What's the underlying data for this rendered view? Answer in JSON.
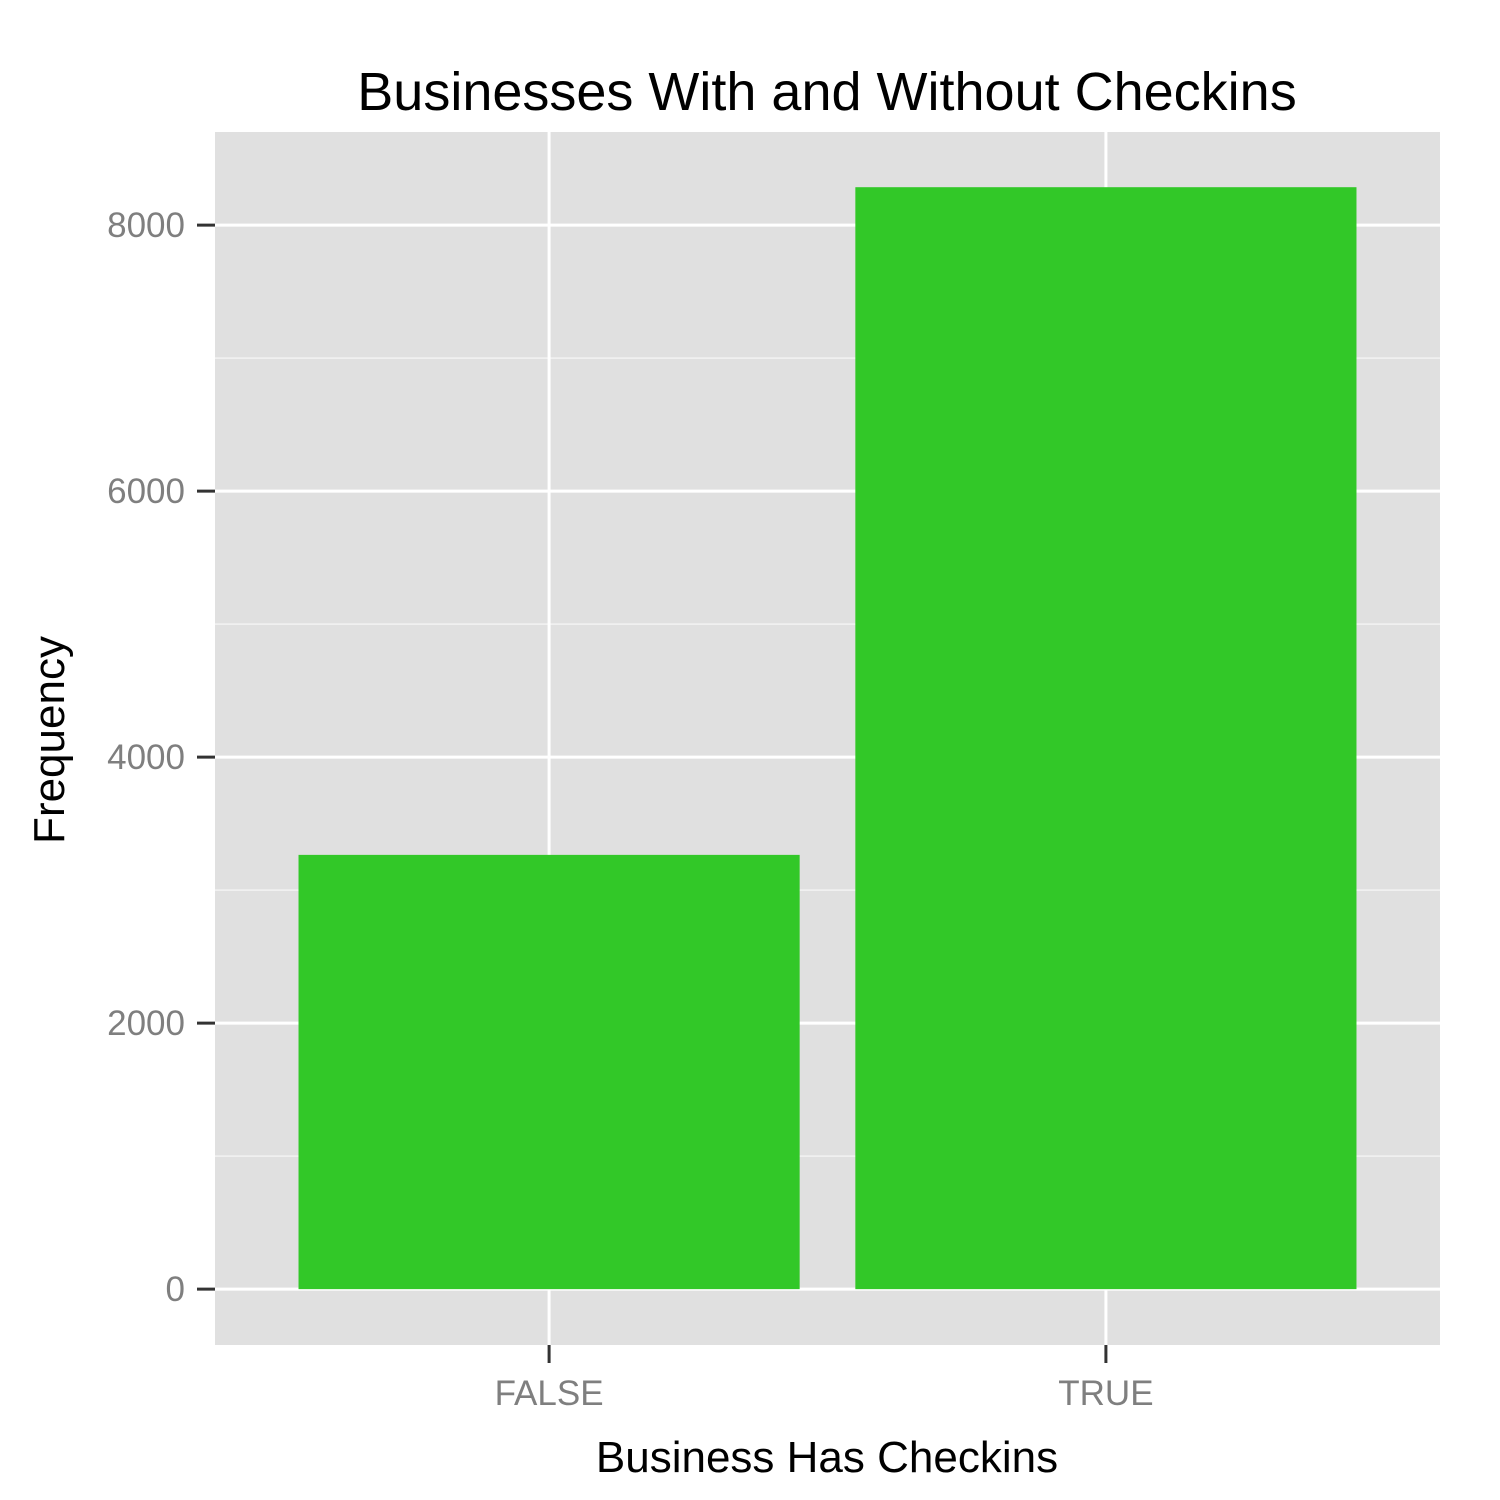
{
  "chart_data": {
    "type": "bar",
    "title": "Businesses With and Without Checkins",
    "xlabel": "Business Has Checkins",
    "ylabel": "Frequency",
    "categories": [
      "FALSE",
      "TRUE"
    ],
    "values": [
      3265,
      8285
    ],
    "ylim": [
      -420,
      8700
    ],
    "yticks": [
      0,
      2000,
      4000,
      6000,
      8000
    ],
    "ytick_labels": [
      "0",
      "2000",
      "4000",
      "6000",
      "8000"
    ],
    "grid": true,
    "legend": "none",
    "colors": {
      "bar": "#32c828",
      "panel_background": "#e0e0e0",
      "grid_major": "#ffffff",
      "grid_minor": "#f2f2f2",
      "tick_text": "#7f7f7f",
      "text": "#000000"
    }
  }
}
